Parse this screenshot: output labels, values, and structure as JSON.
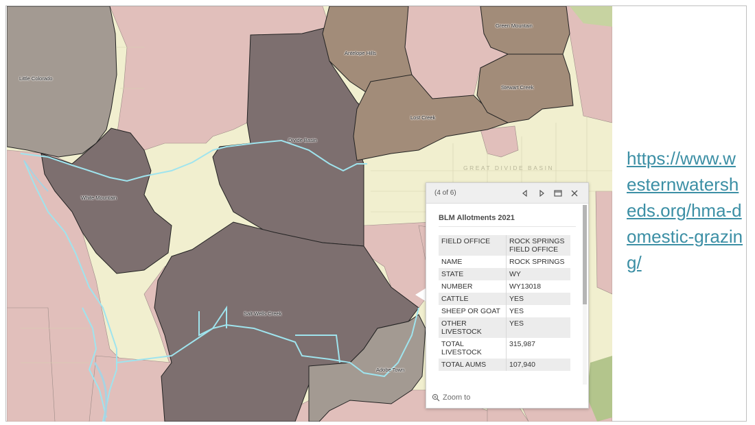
{
  "map": {
    "regions": [
      {
        "id": "little-colorado",
        "label": "Little Colorado"
      },
      {
        "id": "antelope-hills",
        "label": "Antelope Hills"
      },
      {
        "id": "green-mountain",
        "label": "Green Mountain"
      },
      {
        "id": "stewart-creek",
        "label": "Stewart Creek"
      },
      {
        "id": "lost-creek",
        "label": "Lost Creek"
      },
      {
        "id": "divide-basin",
        "label": "Divide Basin"
      },
      {
        "id": "white-mountain",
        "label": "White Mountain"
      },
      {
        "id": "salt-wells-creek",
        "label": "Salt Wells Creek"
      },
      {
        "id": "adobe-town",
        "label": "Adobe Town"
      }
    ],
    "basin_label": "GREAT DIVIDE BASIN",
    "colors": {
      "background": "#f1efcf",
      "pink": "#e1bfbb",
      "dark_purple": "#7d6f6f",
      "brown": "#a28c79",
      "gray": "#a39a92",
      "boundary": "#9fe4ee"
    }
  },
  "popup": {
    "counter": "(4 of 6)",
    "icons": {
      "prev": "triangle-left-icon",
      "next": "triangle-right-icon",
      "dock": "dock-icon",
      "close": "close-icon"
    },
    "title": "BLM Allotments 2021",
    "fields": [
      {
        "key": "FIELD OFFICE",
        "value": "ROCK SPRINGS FIELD OFFICE"
      },
      {
        "key": "NAME",
        "value": "ROCK SPRINGS"
      },
      {
        "key": "STATE",
        "value": "WY"
      },
      {
        "key": "NUMBER",
        "value": "WY13018"
      },
      {
        "key": "CATTLE",
        "value": "YES"
      },
      {
        "key": "SHEEP OR GOAT",
        "value": "YES"
      },
      {
        "key": "OTHER LIVESTOCK",
        "value": "YES"
      },
      {
        "key": "TOTAL LIVESTOCK",
        "value": "315,987"
      },
      {
        "key": "TOTAL AUMS",
        "value": "107,940"
      }
    ],
    "zoom_label": "Zoom to"
  },
  "link": {
    "text": "https://www.westernwatersheds.org/hma-domestic-grazing/"
  }
}
